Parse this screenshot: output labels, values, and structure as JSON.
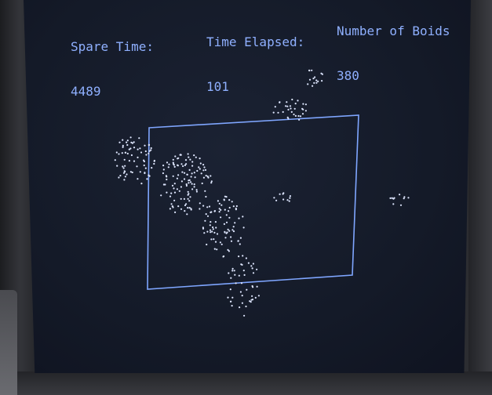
{
  "hud": {
    "spare_time": {
      "label": "Spare Time:",
      "value": "4489"
    },
    "time_elapsed": {
      "label": "Time Elapsed:",
      "value": "101"
    },
    "number_of_boids": {
      "label": "Number of Boids",
      "value": "380"
    }
  },
  "colors": {
    "text": "#8fb0ff",
    "boundary": "#7fa6ff",
    "boid": "#dfe7ff",
    "screen": "#141a28"
  },
  "boid_count": 380
}
